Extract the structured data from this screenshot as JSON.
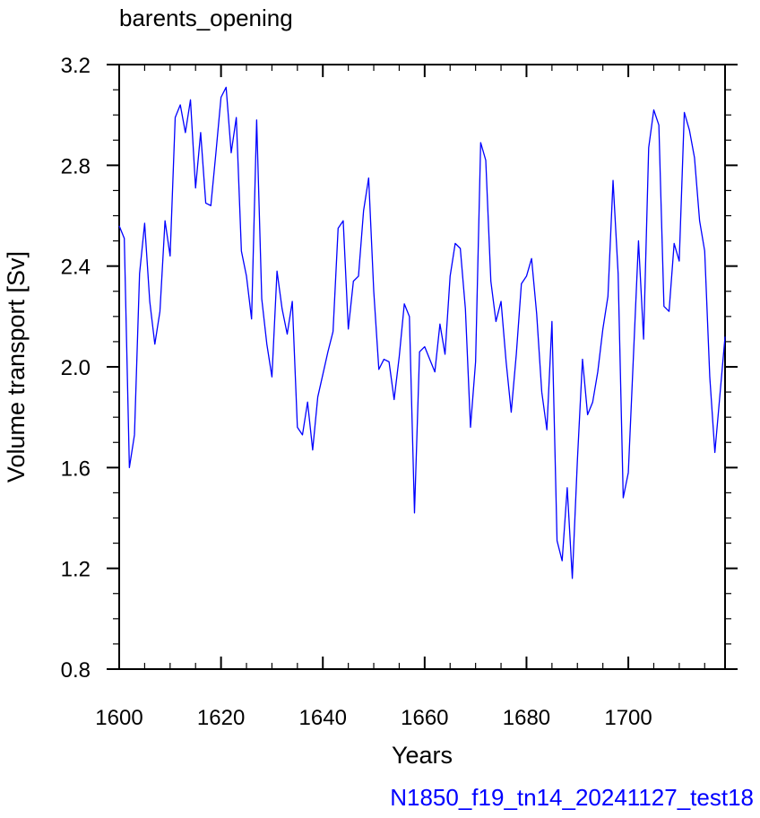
{
  "chart_data": {
    "type": "line",
    "title": "barents_opening",
    "xlabel": "Years",
    "ylabel": "Volume transport [Sv]",
    "xlim": [
      1600,
      1719
    ],
    "ylim": [
      0.8,
      3.2
    ],
    "x_ticks": [
      "1600",
      "1620",
      "1640",
      "1660",
      "1680",
      "1700"
    ],
    "y_ticks": [
      "0.8",
      "1.2",
      "1.6",
      "2.0",
      "2.4",
      "2.8",
      "3.2"
    ],
    "grid": false,
    "legend": "none",
    "line_color": "#0000ff",
    "caption_color": "#0000ff",
    "series": [
      {
        "x": [
          1600,
          1601,
          1602,
          1603,
          1604,
          1605,
          1606,
          1607,
          1608,
          1609,
          1610,
          1611,
          1612,
          1613,
          1614,
          1615,
          1616,
          1617,
          1618,
          1619,
          1620,
          1621,
          1622,
          1623,
          1624,
          1625,
          1626,
          1627,
          1628,
          1629,
          1630,
          1631,
          1632,
          1633,
          1634,
          1635,
          1636,
          1637,
          1638,
          1639,
          1640,
          1641,
          1642,
          1643,
          1644,
          1645,
          1646,
          1647,
          1648,
          1649,
          1650,
          1651,
          1652,
          1653,
          1654,
          1655,
          1656,
          1657,
          1658,
          1659,
          1660,
          1661,
          1662,
          1663,
          1664,
          1665,
          1666,
          1667,
          1668,
          1669,
          1670,
          1671,
          1672,
          1673,
          1674,
          1675,
          1676,
          1677,
          1678,
          1679,
          1680,
          1681,
          1682,
          1683,
          1684,
          1685,
          1686,
          1687,
          1688,
          1689,
          1690,
          1691,
          1692,
          1693,
          1694,
          1695,
          1696,
          1697,
          1698,
          1699,
          1700,
          1701,
          1702,
          1703,
          1704,
          1705,
          1706,
          1707,
          1708,
          1709,
          1710,
          1711,
          1712,
          1713,
          1714,
          1715,
          1716,
          1717,
          1718,
          1719
        ],
        "values": [
          2.56,
          2.51,
          1.6,
          1.73,
          2.37,
          2.57,
          2.26,
          2.09,
          2.22,
          2.58,
          2.44,
          2.99,
          3.04,
          2.93,
          3.06,
          2.71,
          2.93,
          2.65,
          2.64,
          2.85,
          3.07,
          3.11,
          2.85,
          2.99,
          2.46,
          2.36,
          2.19,
          2.98,
          2.27,
          2.09,
          1.96,
          2.38,
          2.23,
          2.13,
          2.26,
          1.76,
          1.73,
          1.86,
          1.67,
          1.88,
          1.97,
          2.06,
          2.14,
          2.55,
          2.58,
          2.15,
          2.34,
          2.36,
          2.62,
          2.75,
          2.3,
          1.99,
          2.03,
          2.02,
          1.87,
          2.04,
          2.25,
          2.2,
          1.42,
          2.06,
          2.08,
          2.03,
          1.98,
          2.17,
          2.05,
          2.36,
          2.49,
          2.47,
          2.23,
          1.76,
          2.02,
          2.89,
          2.82,
          2.34,
          2.18,
          2.26,
          2.02,
          1.82,
          2.05,
          2.33,
          2.36,
          2.43,
          2.21,
          1.9,
          1.75,
          2.18,
          1.31,
          1.23,
          1.52,
          1.16,
          1.63,
          2.03,
          1.81,
          1.86,
          1.98,
          2.15,
          2.28,
          2.74,
          2.37,
          1.48,
          1.58,
          2.04,
          2.5,
          2.11,
          2.87,
          3.02,
          2.96,
          2.24,
          2.22,
          2.49,
          2.42,
          3.01,
          2.94,
          2.83,
          2.58,
          2.46,
          1.96,
          1.66,
          1.89,
          2.12
        ]
      }
    ]
  },
  "caption": "N1850_f19_tn14_20241127_test18"
}
